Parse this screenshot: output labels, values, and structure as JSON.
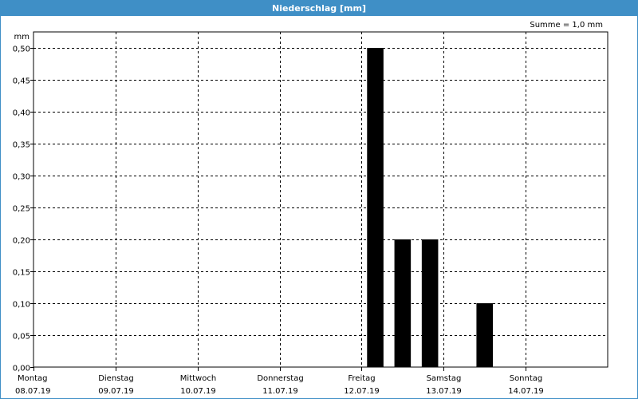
{
  "window": {
    "title": "Niederschlag [mm]"
  },
  "chart_data": {
    "type": "bar",
    "title": "Niederschlag [mm]",
    "annotation": "Summe = 1,0 mm",
    "ylabel": "mm",
    "ylim": [
      0,
      0.5
    ],
    "y_ticks": [
      "0,00",
      "0,05",
      "0,10",
      "0,15",
      "0,20",
      "0,25",
      "0,30",
      "0,35",
      "0,40",
      "0,45",
      "0,50"
    ],
    "x_range_days": [
      0,
      7
    ],
    "day_labels": [
      {
        "day": "Montag",
        "date": "08.07.19"
      },
      {
        "day": "Dienstag",
        "date": "09.07.19"
      },
      {
        "day": "Mittwoch",
        "date": "10.07.19"
      },
      {
        "day": "Donnerstag",
        "date": "11.07.19"
      },
      {
        "day": "Freitag",
        "date": "12.07.19"
      },
      {
        "day": "Samstag",
        "date": "13.07.19"
      },
      {
        "day": "Sonntag",
        "date": "14.07.19"
      }
    ],
    "bar_interval_hours": 8,
    "bars": [
      {
        "start": "12.07.19 00:00",
        "value": 0.5
      },
      {
        "start": "12.07.19 08:00",
        "value": 0.2
      },
      {
        "start": "12.07.19 16:00",
        "value": 0.2
      },
      {
        "start": "13.07.19 08:00",
        "value": 0.1
      }
    ],
    "grid": true,
    "bar_color": "#000000",
    "grid_color": "#000000"
  },
  "colors": {
    "titlebar": "#3f8fc6",
    "background": "#ffffff"
  }
}
